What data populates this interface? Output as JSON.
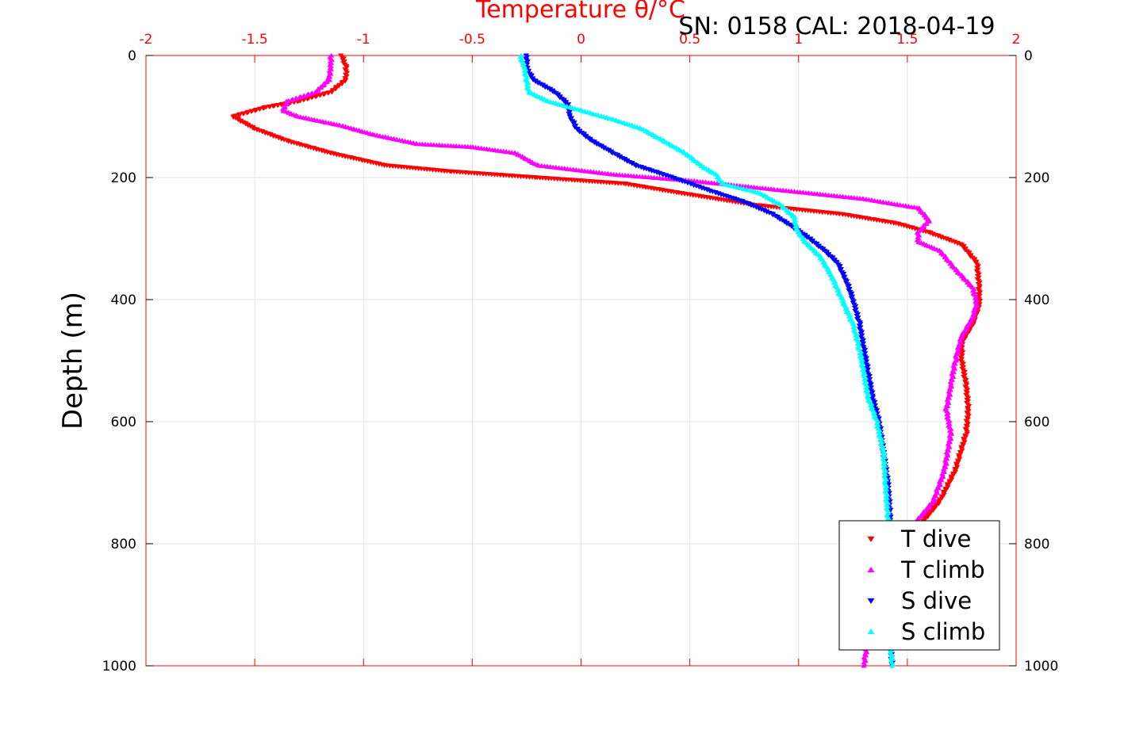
{
  "figure": {
    "subtitle": "SN: 0158  CAL: 2018-04-19"
  },
  "chart_data": {
    "type": "scatter",
    "title": "Temperature θ/°C",
    "xlabel": "Temperature θ/°C",
    "ylabel": "Depth (m)",
    "xlim": [
      -2,
      2
    ],
    "ylim": [
      0,
      1000
    ],
    "y_reversed": true,
    "x_axis_position": "top",
    "grid": true,
    "legend_position": "bottom-right",
    "x_ticks": [
      "-2",
      "-1.5",
      "-1",
      "-0.5",
      "0",
      "0.5",
      "1",
      "1.5",
      "2"
    ],
    "y_ticks": [
      "0",
      "200",
      "400",
      "600",
      "800",
      "1000"
    ],
    "series": [
      {
        "name": "T dive",
        "color": "#ff0000",
        "marker": "triangle-down",
        "points": [
          [
            -1.1,
            0
          ],
          [
            -1.08,
            20
          ],
          [
            -1.08,
            40
          ],
          [
            -1.15,
            60
          ],
          [
            -1.3,
            75
          ],
          [
            -1.45,
            85
          ],
          [
            -1.6,
            100
          ],
          [
            -1.5,
            120
          ],
          [
            -1.35,
            140
          ],
          [
            -1.15,
            160
          ],
          [
            -0.9,
            180
          ],
          [
            -0.6,
            190
          ],
          [
            -0.2,
            200
          ],
          [
            0.2,
            210
          ],
          [
            0.45,
            225
          ],
          [
            0.8,
            245
          ],
          [
            1.2,
            260
          ],
          [
            1.45,
            275
          ],
          [
            1.6,
            290
          ],
          [
            1.75,
            310
          ],
          [
            1.82,
            340
          ],
          [
            1.83,
            380
          ],
          [
            1.83,
            410
          ],
          [
            1.8,
            440
          ],
          [
            1.75,
            470
          ],
          [
            1.75,
            500
          ],
          [
            1.77,
            540
          ],
          [
            1.78,
            580
          ],
          [
            1.77,
            620
          ],
          [
            1.72,
            680
          ],
          [
            1.65,
            730
          ],
          [
            1.58,
            760
          ],
          [
            1.55,
            790
          ],
          [
            1.55,
            800
          ]
        ]
      },
      {
        "name": "T climb",
        "color": "#ff00ff",
        "marker": "triangle-up",
        "points": [
          [
            -1.15,
            0
          ],
          [
            -1.15,
            20
          ],
          [
            -1.16,
            40
          ],
          [
            -1.22,
            60
          ],
          [
            -1.35,
            75
          ],
          [
            -1.37,
            90
          ],
          [
            -1.3,
            100
          ],
          [
            -1.1,
            115
          ],
          [
            -0.95,
            130
          ],
          [
            -0.75,
            145
          ],
          [
            -0.5,
            150
          ],
          [
            -0.3,
            160
          ],
          [
            -0.2,
            180
          ],
          [
            0.15,
            195
          ],
          [
            0.5,
            205
          ],
          [
            0.9,
            220
          ],
          [
            1.3,
            235
          ],
          [
            1.55,
            250
          ],
          [
            1.6,
            270
          ],
          [
            1.55,
            290
          ],
          [
            1.55,
            305
          ],
          [
            1.65,
            320
          ],
          [
            1.72,
            350
          ],
          [
            1.8,
            380
          ],
          [
            1.82,
            405
          ],
          [
            1.8,
            430
          ],
          [
            1.75,
            460
          ],
          [
            1.72,
            500
          ],
          [
            1.7,
            540
          ],
          [
            1.68,
            580
          ],
          [
            1.7,
            620
          ],
          [
            1.67,
            680
          ],
          [
            1.62,
            730
          ],
          [
            1.55,
            760
          ],
          [
            1.45,
            800
          ],
          [
            1.38,
            850
          ],
          [
            1.34,
            900
          ],
          [
            1.32,
            950
          ],
          [
            1.3,
            1000
          ]
        ]
      },
      {
        "name": "S dive",
        "color": "#0000ff",
        "marker": "triangle-down",
        "points": [
          [
            -0.25,
            0
          ],
          [
            -0.25,
            20
          ],
          [
            -0.22,
            40
          ],
          [
            -0.12,
            60
          ],
          [
            -0.06,
            80
          ],
          [
            -0.05,
            100
          ],
          [
            -0.02,
            120
          ],
          [
            0.05,
            140
          ],
          [
            0.15,
            160
          ],
          [
            0.25,
            180
          ],
          [
            0.38,
            195
          ],
          [
            0.5,
            210
          ],
          [
            0.62,
            225
          ],
          [
            0.75,
            240
          ],
          [
            0.88,
            260
          ],
          [
            0.97,
            280
          ],
          [
            1.05,
            300
          ],
          [
            1.12,
            320
          ],
          [
            1.18,
            340
          ],
          [
            1.22,
            370
          ],
          [
            1.25,
            400
          ],
          [
            1.28,
            440
          ],
          [
            1.3,
            480
          ],
          [
            1.32,
            520
          ],
          [
            1.34,
            560
          ],
          [
            1.37,
            600
          ],
          [
            1.39,
            650
          ],
          [
            1.41,
            700
          ],
          [
            1.42,
            750
          ],
          [
            1.42,
            800
          ],
          [
            1.42,
            850
          ],
          [
            1.42,
            900
          ],
          [
            1.42,
            950
          ],
          [
            1.43,
            1000
          ]
        ]
      },
      {
        "name": "S climb",
        "color": "#00ffff",
        "marker": "triangle-up",
        "points": [
          [
            -0.28,
            0
          ],
          [
            -0.26,
            20
          ],
          [
            -0.25,
            40
          ],
          [
            -0.24,
            60
          ],
          [
            -0.15,
            75
          ],
          [
            0.0,
            90
          ],
          [
            0.15,
            105
          ],
          [
            0.28,
            120
          ],
          [
            0.38,
            140
          ],
          [
            0.48,
            160
          ],
          [
            0.55,
            180
          ],
          [
            0.62,
            195
          ],
          [
            0.65,
            210
          ],
          [
            0.82,
            225
          ],
          [
            0.92,
            245
          ],
          [
            0.98,
            265
          ],
          [
            0.99,
            285
          ],
          [
            1.03,
            305
          ],
          [
            1.1,
            330
          ],
          [
            1.15,
            360
          ],
          [
            1.2,
            400
          ],
          [
            1.25,
            440
          ],
          [
            1.28,
            480
          ],
          [
            1.3,
            520
          ],
          [
            1.32,
            560
          ],
          [
            1.36,
            600
          ],
          [
            1.39,
            650
          ],
          [
            1.4,
            700
          ],
          [
            1.41,
            750
          ],
          [
            1.41,
            800
          ],
          [
            1.41,
            850
          ],
          [
            1.41,
            900
          ],
          [
            1.42,
            950
          ],
          [
            1.43,
            1000
          ]
        ]
      }
    ]
  }
}
